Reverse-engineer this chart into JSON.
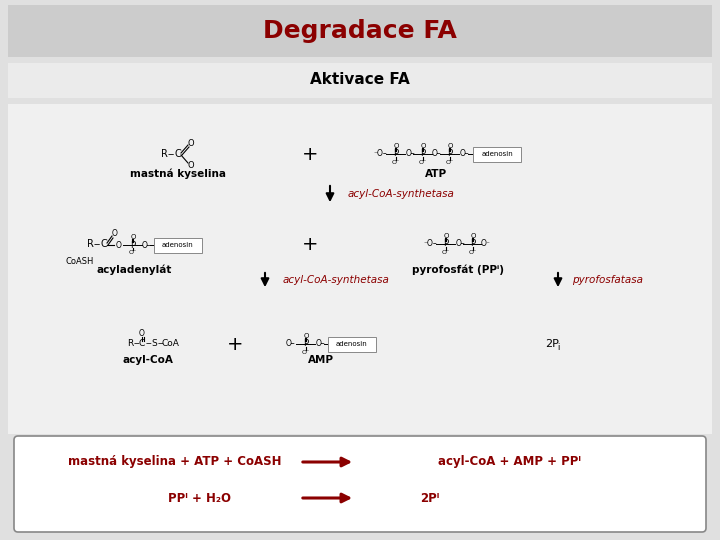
{
  "title": "Degradace FA",
  "subtitle": "Aktivace FA",
  "dark_red": "#8B0000",
  "black": "#000000",
  "bg_outer": "#e0e0e0",
  "bg_title": "#cccccc",
  "bg_subtitle": "#ebebeb",
  "bg_content": "#f0f0f0",
  "labels": {
    "mastna_kyselina": "mastná kyselina",
    "atp": "ATP",
    "acyl_coa_synth1": "acyl-CoA-synthetasa",
    "acyladenyat": "acyladenylát",
    "pyrofosfat": "pyrofosfát (PPⁱ)",
    "acyl_coa_synth2": "acyl-CoA-synthetasa",
    "pyrofosfatasa": "pyrofosfatasa",
    "acyl_coa": "acyl-CoA",
    "amp": "AMP",
    "two_pi": "2Pᴵ",
    "eq1_left": "mastná kyselina + ATP + CoASH",
    "eq1_right": "acyl-CoA + AMP + PPᴵ",
    "eq2_left": "PPᴵ + H₂O",
    "eq2_right": "2Pᴵ"
  }
}
